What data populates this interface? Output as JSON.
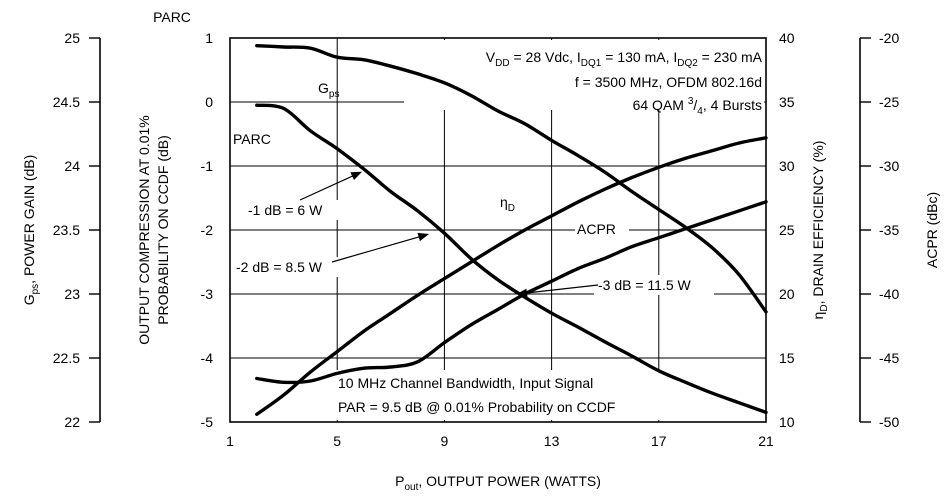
{
  "chart_data": {
    "type": "line",
    "x_axis": {
      "label": "P",
      "label_sub": "out",
      "label_rest": ", OUTPUT POWER (WATTS)",
      "range": [
        1,
        21
      ],
      "ticks": [
        1,
        5,
        9,
        13,
        17,
        21
      ]
    },
    "y_axis_parc": {
      "label_line1": "OUTPUT COMPRESSION AT 0.01%",
      "label_line2": "PROBABILITY ON CCDF (dB)",
      "top_label": "PARC",
      "range": [
        -5,
        1
      ],
      "ticks": [
        "1",
        "0",
        "-1",
        "-2",
        "-3",
        "-4",
        "-5"
      ]
    },
    "y_axis_gps": {
      "label_main": "G",
      "label_sub": "ps",
      "label_rest": ", POWER GAIN (dB)",
      "range": [
        22,
        25
      ],
      "ticks": [
        "25",
        "24.5",
        "24",
        "23.5",
        "23",
        "22.5",
        "22"
      ]
    },
    "y_axis_eff": {
      "label_main": "η",
      "label_sub": "D",
      "label_rest": ", DRAIN EFFICIENCY (%)",
      "range": [
        10,
        40
      ],
      "ticks": [
        "40",
        "35",
        "30",
        "25",
        "20",
        "15",
        "10"
      ]
    },
    "y_axis_acpr": {
      "label": "ACPR (dBc)",
      "range": [
        -50,
        -20
      ],
      "ticks": [
        "-20",
        "-25",
        "-30",
        "-35",
        "-40",
        "-45",
        "-50"
      ]
    },
    "series": [
      {
        "name": "Gps",
        "label_main": "G",
        "label_sub": "ps",
        "axis": "gps",
        "x": [
          2,
          3,
          4,
          5,
          6,
          7,
          8,
          9,
          10,
          11,
          12,
          13,
          14,
          15,
          16,
          17,
          18,
          19,
          20,
          21
        ],
        "y": [
          24.94,
          24.93,
          24.92,
          24.85,
          24.83,
          24.78,
          24.72,
          24.65,
          24.55,
          24.43,
          24.33,
          24.2,
          24.08,
          23.95,
          23.8,
          23.66,
          23.52,
          23.36,
          23.15,
          22.86
        ]
      },
      {
        "name": "PARC",
        "label_main": "PARC",
        "axis": "parc",
        "x": [
          2,
          3,
          4,
          5,
          6,
          7,
          8,
          9,
          10,
          11,
          12,
          13,
          14,
          15,
          16,
          17,
          18,
          19,
          20,
          21
        ],
        "y": [
          -0.05,
          -0.1,
          -0.45,
          -0.73,
          -1.05,
          -1.4,
          -1.7,
          -2.05,
          -2.45,
          -2.78,
          -3.05,
          -3.3,
          -3.52,
          -3.75,
          -3.97,
          -4.2,
          -4.38,
          -4.55,
          -4.7,
          -4.85
        ]
      },
      {
        "name": "ηD",
        "label_main": "η",
        "label_sub": "D",
        "axis": "eff",
        "x": [
          2,
          3,
          4,
          5,
          6,
          7,
          8,
          9,
          10,
          11,
          12,
          13,
          14,
          15,
          16,
          17,
          18,
          19,
          20,
          21
        ],
        "y": [
          10.6,
          12.1,
          13.9,
          15.5,
          17.1,
          18.5,
          19.9,
          21.2,
          22.5,
          23.8,
          25.0,
          26.1,
          27.2,
          28.2,
          29.1,
          29.9,
          30.6,
          31.2,
          31.8,
          32.2
        ]
      },
      {
        "name": "ACPR",
        "label_main": "ACPR",
        "axis": "acpr",
        "x": [
          2,
          3,
          4,
          5,
          6,
          7,
          8,
          9,
          10,
          11,
          12,
          13,
          14,
          15,
          16,
          17,
          18,
          19,
          20,
          21
        ],
        "y": [
          -46.6,
          -46.9,
          -46.8,
          -46.2,
          -45.8,
          -45.7,
          -45.3,
          -43.8,
          -42.4,
          -41.2,
          -40.0,
          -39.0,
          -38.0,
          -37.2,
          -36.3,
          -35.6,
          -34.9,
          -34.2,
          -33.5,
          -32.8
        ]
      }
    ],
    "annotations": {
      "conditions": [
        {
          "parts": [
            [
              "V",
              ""
            ],
            [
              "DD",
              "sub"
            ],
            [
              " = 28 Vdc, I",
              ""
            ],
            [
              "DQ1",
              "sub"
            ],
            [
              " = 130 mA, I",
              ""
            ],
            [
              "DQ2",
              "sub"
            ],
            [
              " = 230 mA",
              ""
            ]
          ]
        },
        {
          "parts": [
            [
              "f = 3500 MHz, OFDM 802.16d",
              ""
            ]
          ]
        },
        {
          "parts": [
            [
              "64 QAM ",
              ""
            ],
            [
              "3",
              "sup"
            ],
            [
              "/",
              ""
            ],
            [
              "4",
              "sub"
            ],
            [
              ", 4 Bursts",
              ""
            ]
          ]
        }
      ],
      "bottom_note_1": "10 MHz Channel Bandwidth, Input Signal",
      "bottom_note_2": "PAR = 9.5 dB @ 0.01% Probability on CCDF",
      "markers": [
        {
          "label": "-1 dB = 6 W",
          "x": 6,
          "y": -1.05
        },
        {
          "label": "-2 dB = 8.5 W",
          "x": 8.5,
          "y": -2.02
        },
        {
          "label": "-3 dB = 11.5 W",
          "x": 11.5,
          "y": -3.0
        }
      ]
    },
    "grid": true
  }
}
